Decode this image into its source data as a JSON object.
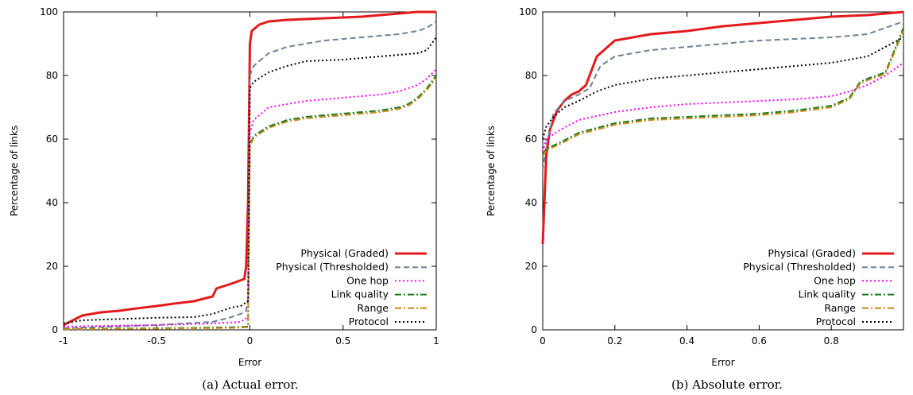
{
  "chart_data": [
    {
      "type": "line",
      "caption": "(a) Actual error.",
      "xlabel": "Error",
      "ylabel": "Percentage of links",
      "xlim": [
        -1,
        1
      ],
      "ylim": [
        0,
        100
      ],
      "xticks": [
        -1,
        -0.5,
        0,
        0.5,
        1
      ],
      "xtick_labels": [
        "-1",
        "-0.5",
        "0",
        "0.5",
        "1"
      ],
      "yticks": [
        0,
        20,
        40,
        60,
        80,
        100
      ],
      "ytick_labels": [
        "0",
        "20",
        "40",
        "60",
        "80",
        "100"
      ],
      "legend_position": "bottom-right",
      "series": [
        {
          "name": "Physical (Graded)",
          "color": "#e41a1c",
          "dash": "solid",
          "x": [
            -1,
            -0.9,
            -0.8,
            -0.7,
            -0.6,
            -0.5,
            -0.4,
            -0.3,
            -0.2,
            -0.18,
            -0.1,
            -0.03,
            -0.02,
            -0.01,
            0,
            0.01,
            0.05,
            0.1,
            0.2,
            0.4,
            0.6,
            0.7,
            0.8,
            0.9,
            1
          ],
          "y": [
            1.5,
            4.5,
            5.5,
            6,
            6.8,
            7.5,
            8.3,
            9,
            10.5,
            13,
            14.5,
            16,
            20,
            40,
            90,
            94,
            96,
            97,
            97.5,
            98,
            98.5,
            99,
            99.5,
            100,
            100
          ]
        },
        {
          "name": "Physical (Thresholded)",
          "color": "#6f8296",
          "dash": "dashed",
          "x": [
            -1,
            -0.5,
            -0.2,
            -0.1,
            -0.05,
            -0.02,
            -0.01,
            0,
            0.02,
            0.1,
            0.2,
            0.3,
            0.4,
            0.5,
            0.6,
            0.7,
            0.8,
            0.9,
            0.95,
            1
          ],
          "y": [
            0.5,
            1.5,
            2.5,
            4,
            5,
            6,
            10,
            80,
            83,
            87,
            89,
            90,
            91,
            91.5,
            92,
            92.5,
            93,
            94,
            95,
            97
          ]
        },
        {
          "name": "One hop",
          "color": "#ff00ff",
          "dash": "dotted",
          "x": [
            -1,
            -0.5,
            -0.2,
            -0.05,
            -0.01,
            0,
            0.02,
            0.1,
            0.2,
            0.3,
            0.5,
            0.7,
            0.8,
            0.9,
            0.95,
            1
          ],
          "y": [
            1,
            1.5,
            2,
            2.5,
            4,
            62,
            66,
            70,
            71,
            72,
            73,
            74,
            75,
            77,
            79,
            82
          ]
        },
        {
          "name": "Link quality",
          "color": "#1a7a1a",
          "dash": "dashdot",
          "x": [
            -1,
            -0.5,
            -0.1,
            -0.01,
            0,
            0.02,
            0.1,
            0.2,
            0.3,
            0.5,
            0.7,
            0.8,
            0.85,
            0.9,
            0.95,
            1
          ],
          "y": [
            0.3,
            0.5,
            0.8,
            1,
            58,
            61,
            64,
            66,
            67,
            68,
            69,
            70,
            71,
            73,
            76,
            80
          ]
        },
        {
          "name": "Range",
          "color": "#c88a1a",
          "dash": "dashdot",
          "x": [
            -1,
            -0.5,
            -0.1,
            -0.01,
            0,
            0.02,
            0.1,
            0.2,
            0.3,
            0.5,
            0.7,
            0.8,
            0.85,
            0.9,
            0.95,
            1
          ],
          "y": [
            0.2,
            0.4,
            0.6,
            0.8,
            57.5,
            60.5,
            63.5,
            65.5,
            66.5,
            67.5,
            68.5,
            69.5,
            70.5,
            72.5,
            75.5,
            79
          ]
        },
        {
          "name": "Protocol",
          "color": "#000000",
          "dash": "dotted",
          "x": [
            -1,
            -0.9,
            -0.5,
            -0.3,
            -0.2,
            -0.1,
            -0.05,
            -0.01,
            0,
            0.02,
            0.1,
            0.2,
            0.3,
            0.5,
            0.7,
            0.8,
            0.9,
            0.95,
            1
          ],
          "y": [
            2,
            3,
            3.8,
            4,
            5,
            7,
            7.5,
            9,
            76,
            78,
            81,
            83,
            84.5,
            85,
            86,
            86.5,
            87,
            88,
            92
          ]
        }
      ]
    },
    {
      "type": "line",
      "caption": "(b) Absolute error.",
      "xlabel": "Error",
      "ylabel": "Percentage of links",
      "xlim": [
        0,
        1
      ],
      "ylim": [
        0,
        100
      ],
      "xticks": [
        0,
        0.2,
        0.4,
        0.6,
        0.8
      ],
      "xtick_labels": [
        "0",
        "0.2",
        "0.4",
        "0.6",
        "0.8"
      ],
      "yticks": [
        0,
        20,
        40,
        60,
        80,
        100
      ],
      "ytick_labels": [
        "0",
        "20",
        "40",
        "60",
        "80",
        "100"
      ],
      "legend_position": "bottom-right",
      "series": [
        {
          "name": "Physical (Graded)",
          "color": "#e41a1c",
          "dash": "solid",
          "x": [
            0,
            0.01,
            0.02,
            0.04,
            0.06,
            0.08,
            0.1,
            0.12,
            0.13,
            0.15,
            0.18,
            0.2,
            0.25,
            0.3,
            0.4,
            0.5,
            0.6,
            0.7,
            0.8,
            0.9,
            1
          ],
          "y": [
            27,
            55,
            63,
            69,
            72,
            74,
            75,
            77,
            80,
            86,
            89,
            91,
            92,
            93,
            94,
            95.5,
            96.5,
            97.5,
            98.5,
            99,
            100
          ]
        },
        {
          "name": "Physical (Thresholded)",
          "color": "#6f8296",
          "dash": "dashed",
          "x": [
            0,
            0.01,
            0.03,
            0.06,
            0.1,
            0.13,
            0.16,
            0.2,
            0.25,
            0.3,
            0.4,
            0.5,
            0.6,
            0.7,
            0.8,
            0.9,
            0.95,
            1
          ],
          "y": [
            50,
            58,
            68,
            72,
            74,
            76,
            83,
            86,
            87,
            88,
            89,
            90,
            91,
            91.5,
            92,
            93,
            95,
            97
          ]
        },
        {
          "name": "One hop",
          "color": "#ff00ff",
          "dash": "dotted",
          "x": [
            0,
            0.01,
            0.05,
            0.1,
            0.2,
            0.3,
            0.4,
            0.5,
            0.6,
            0.7,
            0.8,
            0.85,
            0.9,
            0.95,
            1
          ],
          "y": [
            56,
            60,
            63,
            66,
            68.5,
            70,
            71,
            71.5,
            72,
            72.5,
            73.5,
            75,
            77,
            80,
            84
          ]
        },
        {
          "name": "Link quality",
          "color": "#1a7a1a",
          "dash": "dashdot",
          "x": [
            0,
            0.01,
            0.05,
            0.1,
            0.2,
            0.3,
            0.4,
            0.5,
            0.6,
            0.7,
            0.8,
            0.85,
            0.88,
            0.9,
            0.95,
            1
          ],
          "y": [
            55,
            57,
            59,
            62,
            65,
            66.5,
            67,
            67.5,
            68,
            69,
            70.5,
            73,
            78,
            79,
            81,
            95
          ]
        },
        {
          "name": "Range",
          "color": "#c88a1a",
          "dash": "dashdot",
          "x": [
            0,
            0.01,
            0.05,
            0.1,
            0.2,
            0.3,
            0.4,
            0.5,
            0.6,
            0.7,
            0.8,
            0.85,
            0.88,
            0.9,
            0.95,
            1
          ],
          "y": [
            54.5,
            56.5,
            58.5,
            61.5,
            64.5,
            66,
            66.5,
            67,
            67.5,
            68.5,
            70,
            72.5,
            77.5,
            78.5,
            80.5,
            94
          ]
        },
        {
          "name": "Protocol",
          "color": "#000000",
          "dash": "dotted",
          "x": [
            0,
            0.01,
            0.03,
            0.06,
            0.1,
            0.15,
            0.2,
            0.3,
            0.4,
            0.5,
            0.6,
            0.7,
            0.8,
            0.9,
            0.95,
            1
          ],
          "y": [
            60,
            64,
            67,
            70,
            72,
            75,
            77,
            79,
            80,
            81,
            82,
            83,
            84,
            86,
            89,
            92
          ]
        }
      ]
    }
  ]
}
